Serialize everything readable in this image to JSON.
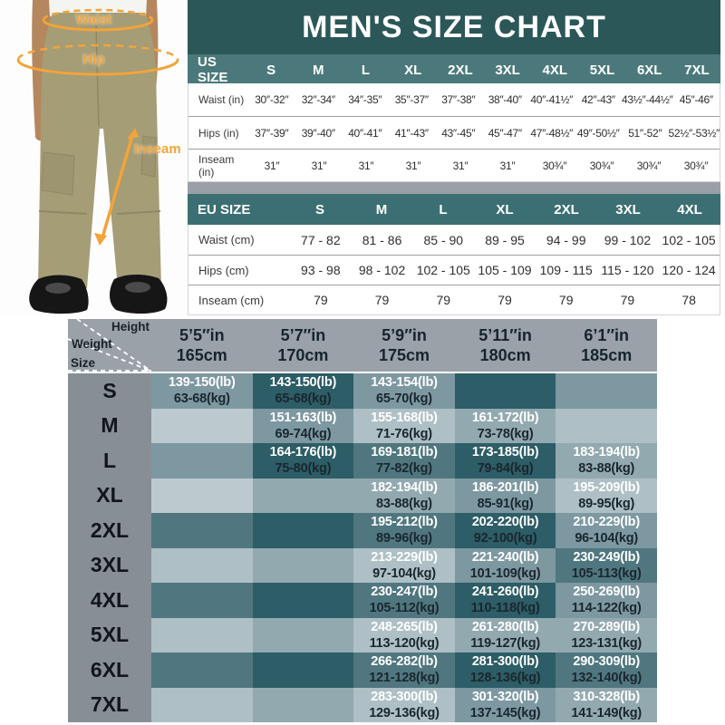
{
  "title": "MEN'S SIZE CHART",
  "colors": {
    "accent_orange": "#F2A43A",
    "title_teal": "#2B5758",
    "us_header_teal": "#4B797B",
    "eu_header_teal": "#3C6F73",
    "matrix_header_gray": "#9AA1A8",
    "size_column_gray": "#878E96"
  },
  "photo": {
    "annotations": {
      "waist": "Waist",
      "hip": "Hip",
      "inseam": "Inseam"
    }
  },
  "us_table": {
    "header_label": "US SIZE",
    "sizes": [
      "S",
      "M",
      "L",
      "XL",
      "2XL",
      "3XL",
      "4XL",
      "5XL",
      "6XL",
      "7XL"
    ],
    "rows": [
      {
        "label": "Waist (in)",
        "values": [
          "30″-32″",
          "32″-34″",
          "34″-35″",
          "35″-37″",
          "37″-38″",
          "38″-40″",
          "40″-41½″",
          "42″-43″",
          "43½″-44½″",
          "45″-46″"
        ]
      },
      {
        "label": "Hips (in)",
        "values": [
          "37″-39″",
          "39″-40″",
          "40″-41″",
          "41″-43″",
          "43″-45″",
          "45″-47″",
          "47″-48½″",
          "49″-50½″",
          "51″-52″",
          "52½″-53½″"
        ]
      },
      {
        "label": "Inseam (in)",
        "values": [
          "31″",
          "31″",
          "31″",
          "31″",
          "31″",
          "31″",
          "30¾″",
          "30¾″",
          "30¾″",
          "30¾″"
        ]
      }
    ]
  },
  "eu_table": {
    "header_label": "EU SIZE",
    "sizes": [
      "S",
      "M",
      "L",
      "XL",
      "2XL",
      "3XL",
      "4XL"
    ],
    "rows": [
      {
        "label": "Waist (cm)",
        "values": [
          "77 - 82",
          "81 - 86",
          "85 - 90",
          "89 - 95",
          "94 - 99",
          "99 - 102",
          "102 - 105"
        ]
      },
      {
        "label": "Hips (cm)",
        "values": [
          "93 - 98",
          "98 - 102",
          "102 - 105",
          "105 - 109",
          "109 - 115",
          "115 - 120",
          "120 - 124"
        ]
      },
      {
        "label": "Inseam (cm)",
        "values": [
          "79",
          "79",
          "79",
          "79",
          "79",
          "79",
          "78"
        ]
      }
    ]
  },
  "matrix": {
    "corner": {
      "height": "Height",
      "weight": "Weight",
      "size": "Size"
    },
    "columns": [
      {
        "line1": "5’5″in",
        "line2": "165cm"
      },
      {
        "line1": "5’7″in",
        "line2": "170cm"
      },
      {
        "line1": "5’9″in",
        "line2": "175cm"
      },
      {
        "line1": "5’11″in",
        "line2": "180cm"
      },
      {
        "line1": "6’1″in",
        "line2": "185cm"
      }
    ],
    "shade_colors": {
      "s1": "#2D5D66",
      "s2": "#50777F",
      "s3": "#7D98A1",
      "s4": "#93A9B0",
      "s5": "#AEC0C5",
      "s6": "#BCCAD0"
    },
    "rows": [
      {
        "size": "S",
        "cells": [
          {
            "shade": "s3",
            "lb": "139-150(lb)",
            "kg": "63-68(kg)"
          },
          {
            "shade": "s1",
            "lb": "143-150(lb)",
            "kg": "65-68(kg)"
          },
          {
            "shade": "s3",
            "lb": "143-154(lb)",
            "kg": "65-70(kg)"
          },
          {
            "shade": "s1"
          },
          {
            "shade": "s3"
          }
        ]
      },
      {
        "size": "M",
        "cells": [
          {
            "shade": "s6"
          },
          {
            "shade": "s3",
            "lb": "151-163(lb)",
            "kg": "69-74(kg)"
          },
          {
            "shade": "s5",
            "lb": "155-168(lb)",
            "kg": "71-76(kg)"
          },
          {
            "shade": "s4",
            "lb": "161-172(lb)",
            "kg": "73-78(kg)"
          },
          {
            "shade": "s5"
          }
        ]
      },
      {
        "size": "L",
        "cells": [
          {
            "shade": "s3"
          },
          {
            "shade": "s1",
            "lb": "164-176(lb)",
            "kg": "75-80(kg)"
          },
          {
            "shade": "s2",
            "lb": "169-181(lb)",
            "kg": "77-82(kg)"
          },
          {
            "shade": "s1",
            "lb": "173-185(lb)",
            "kg": "79-84(kg)"
          },
          {
            "shade": "s4",
            "lb": "183-194(lb)",
            "kg": "83-88(kg)"
          }
        ]
      },
      {
        "size": "XL",
        "cells": [
          {
            "shade": "s6"
          },
          {
            "shade": "s4"
          },
          {
            "shade": "s4",
            "lb": "182-194(lb)",
            "kg": "83-88(kg)"
          },
          {
            "shade": "s3",
            "lb": "186-201(lb)",
            "kg": "85-91(kg)"
          },
          {
            "shade": "s5",
            "lb": "195-209(lb)",
            "kg": "89-95(kg)"
          }
        ]
      },
      {
        "size": "2XL",
        "cells": [
          {
            "shade": "s2"
          },
          {
            "shade": "s1"
          },
          {
            "shade": "s2",
            "lb": "195-212(lb)",
            "kg": "89-96(kg)"
          },
          {
            "shade": "s1",
            "lb": "202-220(lb)",
            "kg": "92-100(kg)"
          },
          {
            "shade": "s3",
            "lb": "210-229(lb)",
            "kg": "96-104(kg)"
          }
        ]
      },
      {
        "size": "3XL",
        "cells": [
          {
            "shade": "s5"
          },
          {
            "shade": "s4"
          },
          {
            "shade": "s5",
            "lb": "213-229(lb)",
            "kg": "97-104(kg)"
          },
          {
            "shade": "s3",
            "lb": "221-240(lb)",
            "kg": "101-109(kg)"
          },
          {
            "shade": "s2",
            "lb": "230-249(lb)",
            "kg": "105-113(kg)"
          }
        ]
      },
      {
        "size": "4XL",
        "cells": [
          {
            "shade": "s2"
          },
          {
            "shade": "s1"
          },
          {
            "shade": "s2",
            "lb": "230-247(lb)",
            "kg": "105-112(kg)"
          },
          {
            "shade": "s1",
            "lb": "241-260(lb)",
            "kg": "110-118(kg)"
          },
          {
            "shade": "s3",
            "lb": "250-269(lb)",
            "kg": "114-122(kg)"
          }
        ]
      },
      {
        "size": "5XL",
        "cells": [
          {
            "shade": "s5"
          },
          {
            "shade": "s4"
          },
          {
            "shade": "s5",
            "lb": "248-265(lb)",
            "kg": "113-120(kg)"
          },
          {
            "shade": "s4",
            "lb": "261-280(lb)",
            "kg": "119-127(kg)"
          },
          {
            "shade": "s4",
            "lb": "270-289(lb)",
            "kg": "123-131(kg)"
          }
        ]
      },
      {
        "size": "6XL",
        "cells": [
          {
            "shade": "s2"
          },
          {
            "shade": "s1"
          },
          {
            "shade": "s2",
            "lb": "266-282(lb)",
            "kg": "121-128(kg)"
          },
          {
            "shade": "s1",
            "lb": "281-300(lb)",
            "kg": "128-136(kg)"
          },
          {
            "shade": "s2",
            "lb": "290-309(lb)",
            "kg": "132-140(kg)"
          }
        ]
      },
      {
        "size": "7XL",
        "cells": [
          {
            "shade": "s5"
          },
          {
            "shade": "s4"
          },
          {
            "shade": "s5",
            "lb": "283-300(lb)",
            "kg": "129-136(kg)"
          },
          {
            "shade": "s3",
            "lb": "301-320(lb)",
            "kg": "137-145(kg)"
          },
          {
            "shade": "s4",
            "lb": "310-328(lb)",
            "kg": "141-149(kg)"
          }
        ]
      }
    ]
  }
}
